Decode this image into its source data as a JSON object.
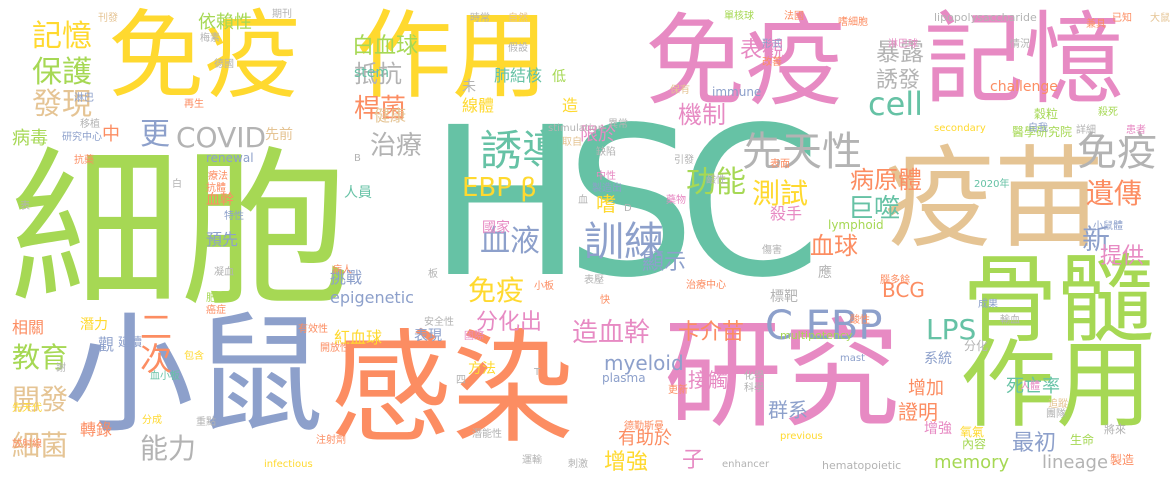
{
  "colors": {
    "teal": "#66c2a5",
    "orange": "#fc8d62",
    "blue": "#8da0cb",
    "pink": "#e78ac3",
    "green": "#a6d854",
    "yellow": "#ffd92f",
    "tan": "#e5c494",
    "gray": "#b3b3b3"
  },
  "words": [
    {
      "text": "HSC",
      "color": "teal"
    },
    {
      "text": "細胞",
      "color": "green"
    },
    {
      "text": "免疫",
      "color": "yellow"
    },
    {
      "text": "作用",
      "color": "yellow"
    },
    {
      "text": "免疫",
      "color": "pink"
    },
    {
      "text": "記憶",
      "color": "pink"
    },
    {
      "text": "疫苗",
      "color": "tan"
    },
    {
      "text": "感染",
      "color": "orange"
    },
    {
      "text": "研究",
      "color": "pink"
    },
    {
      "text": "小鼠",
      "color": "blue"
    },
    {
      "text": "骨髓",
      "color": "green"
    },
    {
      "text": "作用",
      "color": "green"
    },
    {
      "text": "誘導",
      "color": "teal"
    },
    {
      "text": "先天性",
      "color": "gray"
    },
    {
      "text": "免疫",
      "color": "gray"
    },
    {
      "text": "EBP β",
      "color": "yellow"
    },
    {
      "text": "功能",
      "color": "green"
    },
    {
      "text": "C EBP",
      "color": "blue"
    },
    {
      "text": "LPS",
      "color": "teal"
    },
    {
      "text": "訓練",
      "color": "blue"
    },
    {
      "text": "血液",
      "color": "blue"
    },
    {
      "text": "免疫",
      "color": "yellow"
    },
    {
      "text": "COVID",
      "color": "gray"
    },
    {
      "text": "cell",
      "color": "teal"
    },
    {
      "text": "治療",
      "color": "gray"
    },
    {
      "text": "保護",
      "color": "green"
    },
    {
      "text": "記憶",
      "color": "yellow"
    },
    {
      "text": "發現",
      "color": "tan"
    },
    {
      "text": "病毒",
      "color": "green"
    },
    {
      "text": "教育",
      "color": "green"
    },
    {
      "text": "開發",
      "color": "tan"
    },
    {
      "text": "細菌",
      "color": "tan"
    },
    {
      "text": "能力",
      "color": "gray"
    },
    {
      "text": "二次",
      "color": "orange"
    },
    {
      "text": "更",
      "color": "blue"
    },
    {
      "text": "桿菌",
      "color": "orange"
    },
    {
      "text": "抵抗",
      "color": "gray"
    },
    {
      "text": "白血球",
      "color": "green"
    },
    {
      "text": "暴露",
      "color": "gray"
    },
    {
      "text": "表觀",
      "color": "pink"
    },
    {
      "text": "誘發",
      "color": "gray"
    },
    {
      "text": "測試",
      "color": "yellow"
    },
    {
      "text": "病原體",
      "color": "orange"
    },
    {
      "text": "巨噬",
      "color": "teal"
    },
    {
      "text": "血球",
      "color": "orange"
    },
    {
      "text": "遺傳",
      "color": "orange"
    },
    {
      "text": "新",
      "color": "blue"
    },
    {
      "text": "提供",
      "color": "pink"
    },
    {
      "text": "機制",
      "color": "pink"
    },
    {
      "text": "顯示",
      "color": "blue"
    },
    {
      "text": "分化出",
      "color": "pink"
    },
    {
      "text": "造血幹",
      "color": "pink"
    },
    {
      "text": "卡介苗",
      "color": "orange"
    },
    {
      "text": "BCG",
      "color": "orange"
    },
    {
      "text": "myeloid",
      "color": "blue"
    },
    {
      "text": "接觸",
      "color": "pink"
    },
    {
      "text": "群系",
      "color": "blue"
    },
    {
      "text": "證明",
      "color": "orange"
    },
    {
      "text": "最初",
      "color": "blue"
    },
    {
      "text": "memory",
      "color": "green"
    },
    {
      "text": "lineage",
      "color": "gray"
    },
    {
      "text": "有助於",
      "color": "orange"
    },
    {
      "text": "增強",
      "color": "yellow"
    },
    {
      "text": "子",
      "color": "pink"
    },
    {
      "text": "增加",
      "color": "orange"
    },
    {
      "text": "死亡率",
      "color": "teal"
    },
    {
      "text": "依賴性",
      "color": "green"
    },
    {
      "text": "肺結核",
      "color": "teal"
    },
    {
      "text": "stem",
      "color": "teal"
    },
    {
      "text": "健康",
      "color": "tan"
    },
    {
      "text": "中",
      "color": "orange"
    },
    {
      "text": "嗜",
      "color": "yellow"
    },
    {
      "text": "殺手",
      "color": "pink"
    },
    {
      "text": "國家",
      "color": "pink"
    },
    {
      "text": "人員",
      "color": "teal"
    },
    {
      "text": "挑戰",
      "color": "blue"
    },
    {
      "text": "epigenetic",
      "color": "blue"
    },
    {
      "text": "紅血球",
      "color": "yellow"
    },
    {
      "text": "表現",
      "color": "blue"
    },
    {
      "text": "血幹",
      "color": "orange"
    },
    {
      "text": "預先",
      "color": "blue"
    },
    {
      "text": "轉錄",
      "color": "orange"
    },
    {
      "text": "challenge",
      "color": "orange"
    },
    {
      "text": "低",
      "color": "green"
    },
    {
      "text": "造",
      "color": "yellow"
    },
    {
      "text": "限於",
      "color": "pink"
    },
    {
      "text": "線體",
      "color": "yellow"
    },
    {
      "text": "未",
      "color": "gray"
    },
    {
      "text": "先前",
      "color": "tan"
    },
    {
      "text": "renewal",
      "color": "blue"
    },
    {
      "text": "相關",
      "color": "orange"
    },
    {
      "text": "潛力",
      "color": "yellow"
    },
    {
      "text": "觀",
      "color": "blue"
    },
    {
      "text": "延續",
      "color": "blue"
    },
    {
      "text": "方法",
      "color": "yellow"
    },
    {
      "text": "標靶",
      "color": "gray"
    },
    {
      "text": "應",
      "color": "gray"
    },
    {
      "text": "分化",
      "color": "gray"
    },
    {
      "text": "系統",
      "color": "blue"
    },
    {
      "text": "增強",
      "color": "pink"
    },
    {
      "text": "內容",
      "color": "green"
    },
    {
      "text": "氧氣",
      "color": "yellow"
    },
    {
      "text": "生命",
      "color": "green"
    },
    {
      "text": "製造",
      "color": "orange"
    },
    {
      "text": "將來",
      "color": "gray"
    },
    {
      "text": "穀粒",
      "color": "green"
    },
    {
      "text": "醫學研究院",
      "color": "green"
    },
    {
      "text": "lipopolysaccharide",
      "color": "gray"
    },
    {
      "text": "hematopoietic",
      "color": "gray"
    },
    {
      "text": "multipotency",
      "color": "green"
    },
    {
      "text": "previous",
      "color": "yellow"
    },
    {
      "text": "enhancer",
      "color": "gray"
    },
    {
      "text": "infectious",
      "color": "yellow"
    },
    {
      "text": "plasma",
      "color": "blue"
    },
    {
      "text": "mast",
      "color": "blue"
    },
    {
      "text": "immune",
      "color": "blue"
    },
    {
      "text": "secondary",
      "color": "yellow"
    },
    {
      "text": "stimulation",
      "color": "gray"
    },
    {
      "text": "lymphoid",
      "color": "green"
    },
    {
      "text": "研究中心",
      "color": "blue"
    },
    {
      "text": "治療中心",
      "color": "orange"
    },
    {
      "text": "小鼠體",
      "color": "blue"
    },
    {
      "text": "2020年",
      "color": "teal"
    },
    {
      "text": "淋巴球",
      "color": "pink"
    },
    {
      "text": "時常",
      "color": "gray"
    },
    {
      "text": "自然",
      "color": "tan"
    },
    {
      "text": "期刊",
      "color": "gray"
    },
    {
      "text": "刊發",
      "color": "tan"
    },
    {
      "text": "單核球",
      "color": "green"
    },
    {
      "text": "法國",
      "color": "orange"
    },
    {
      "text": "嗜細胞",
      "color": "orange"
    },
    {
      "text": "兼具",
      "color": "orange"
    },
    {
      "text": "已知",
      "color": "orange"
    },
    {
      "text": "大鼠",
      "color": "tan"
    },
    {
      "text": "形式",
      "color": "blue"
    },
    {
      "text": "情況",
      "color": "gray"
    },
    {
      "text": "殺死",
      "color": "green"
    },
    {
      "text": "自我",
      "color": "blue"
    },
    {
      "text": "詳細",
      "color": "gray"
    },
    {
      "text": "患者",
      "color": "pink"
    },
    {
      "text": "梅素",
      "color": "gray"
    },
    {
      "text": "德國",
      "color": "gray"
    },
    {
      "text": "淋巴",
      "color": "blue"
    },
    {
      "text": "再生",
      "color": "orange"
    },
    {
      "text": "移植",
      "color": "gray"
    },
    {
      "text": "抗藥",
      "color": "orange"
    },
    {
      "text": "療法",
      "color": "orange"
    },
    {
      "text": "特性",
      "color": "blue"
    },
    {
      "text": "抗體",
      "color": "orange"
    },
    {
      "text": "凝血",
      "color": "gray"
    },
    {
      "text": "肥大",
      "color": "green"
    },
    {
      "text": "癌症",
      "color": "orange"
    },
    {
      "text": "病人",
      "color": "orange"
    },
    {
      "text": "先天代",
      "color": "yellow"
    },
    {
      "text": "放射線",
      "color": "orange"
    },
    {
      "text": "分成",
      "color": "yellow"
    },
    {
      "text": "重點",
      "color": "gray"
    },
    {
      "text": "血小板",
      "color": "teal"
    },
    {
      "text": "包含",
      "color": "yellow"
    },
    {
      "text": "開放性",
      "color": "orange"
    },
    {
      "text": "有效性",
      "color": "orange"
    },
    {
      "text": "安全性",
      "color": "gray"
    },
    {
      "text": "國際",
      "color": "pink"
    },
    {
      "text": "更新",
      "color": "orange"
    },
    {
      "text": "化學",
      "color": "gray"
    },
    {
      "text": "科學",
      "color": "gray"
    },
    {
      "text": "人體",
      "color": "pink"
    },
    {
      "text": "追蹤",
      "color": "tan"
    },
    {
      "text": "運輸",
      "color": "gray"
    },
    {
      "text": "刺激",
      "color": "gray"
    },
    {
      "text": "潛能性",
      "color": "gray"
    },
    {
      "text": "德勤斯曼",
      "color": "orange"
    },
    {
      "text": "團隊",
      "color": "gray"
    },
    {
      "text": "腦多餘",
      "color": "orange"
    },
    {
      "text": "傷害",
      "color": "gray"
    },
    {
      "text": "快",
      "color": "orange"
    },
    {
      "text": "成果",
      "color": "blue"
    },
    {
      "text": "輸血",
      "color": "gray"
    },
    {
      "text": "酸性",
      "color": "orange"
    },
    {
      "text": "注射劑",
      "color": "orange"
    },
    {
      "text": "引發",
      "color": "gray"
    },
    {
      "text": "中性",
      "color": "pink"
    },
    {
      "text": "製造出",
      "color": "blue"
    },
    {
      "text": "藥物",
      "color": "pink"
    },
    {
      "text": "表面",
      "color": "orange"
    },
    {
      "text": "鹼性",
      "color": "gray"
    },
    {
      "text": "缺陷",
      "color": "gray"
    },
    {
      "text": "取自",
      "color": "tan"
    },
    {
      "text": "異常",
      "color": "gray"
    },
    {
      "text": "假設",
      "color": "gray"
    },
    {
      "text": "保有",
      "color": "tan"
    },
    {
      "text": "改善",
      "color": "orange"
    },
    {
      "text": "表",
      "color": "gray"
    },
    {
      "text": "白",
      "color": "gray"
    },
    {
      "text": "血",
      "color": "gray"
    },
    {
      "text": "板",
      "color": "gray"
    },
    {
      "text": "四",
      "color": "gray"
    },
    {
      "text": "T",
      "color": "gray"
    },
    {
      "text": "B",
      "color": "gray"
    },
    {
      "text": "D",
      "color": "gray"
    },
    {
      "text": "小板",
      "color": "orange"
    },
    {
      "text": "謝",
      "color": "gray"
    },
    {
      "text": "表壓",
      "color": "gray"
    }
  ]
}
